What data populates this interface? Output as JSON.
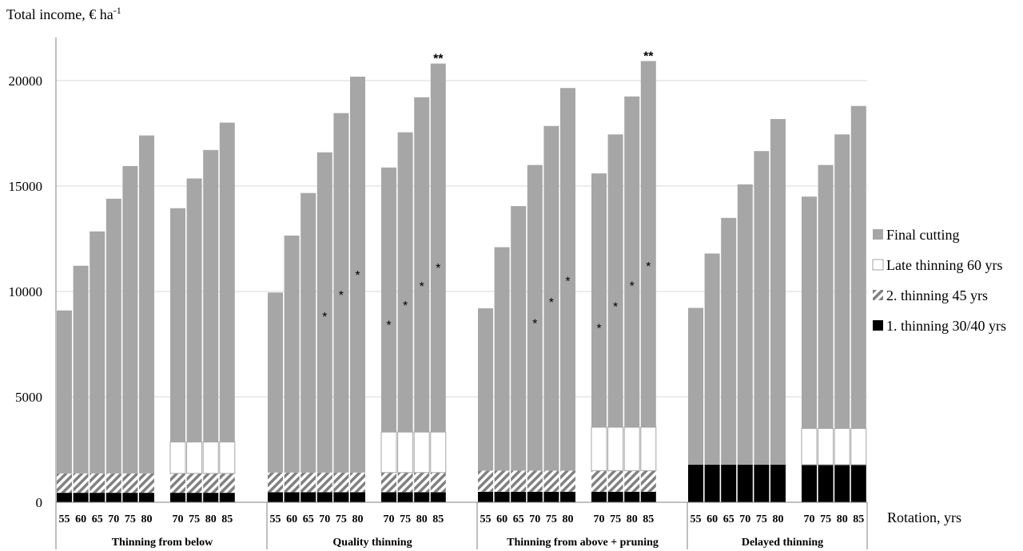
{
  "chart_data": {
    "type": "stacked-bar",
    "ylabel": "Total income, € ha",
    "ylabel_sup": "-1",
    "xlabel": "Rotation,  yrs",
    "ylim": [
      0,
      22000
    ],
    "yticks": [
      0,
      5000,
      10000,
      15000,
      20000
    ],
    "grid": true,
    "legend_position": "right",
    "series_names": [
      "Final cutting",
      "Late thinning 60 yrs",
      "2. thinning 45 yrs",
      "1. thinning 30/40 yrs"
    ],
    "colors": {
      "final": "#a6a6a6",
      "late": "#ffffff",
      "second": "#808080",
      "first": "#000000"
    },
    "groups": [
      {
        "name": "Thinning from below",
        "subgroups": [
          {
            "categories": [
              "55",
              "60",
              "65",
              "70",
              "75",
              "80"
            ],
            "first": [
              450,
              450,
              450,
              450,
              450,
              450
            ],
            "second": [
              920,
              920,
              920,
              920,
              920,
              920
            ],
            "late": [
              0,
              0,
              0,
              0,
              0,
              0
            ],
            "final": [
              7730,
              9850,
              11480,
              13030,
              14580,
              16030
            ],
            "stars": [
              "",
              "",
              "",
              "",
              "",
              ""
            ]
          },
          {
            "categories": [
              "70",
              "75",
              "80",
              "85"
            ],
            "first": [
              450,
              450,
              450,
              450
            ],
            "second": [
              920,
              920,
              920,
              920
            ],
            "late": [
              1490,
              1490,
              1490,
              1490
            ],
            "final": [
              11090,
              12500,
              13850,
              15150
            ],
            "stars": [
              "",
              "",
              "",
              ""
            ]
          }
        ]
      },
      {
        "name": "Quality thinning",
        "subgroups": [
          {
            "categories": [
              "55",
              "60",
              "65",
              "70",
              "75",
              "80"
            ],
            "first": [
              480,
              480,
              480,
              480,
              480,
              480
            ],
            "second": [
              930,
              930,
              930,
              930,
              930,
              930
            ],
            "late": [
              0,
              0,
              0,
              0,
              0,
              0
            ],
            "final": [
              8540,
              11240,
              13260,
              15190,
              17050,
              18780
            ],
            "stars": [
              "",
              "",
              "",
              "*",
              "*",
              "*"
            ]
          },
          {
            "categories": [
              "70",
              "75",
              "80",
              "85"
            ],
            "first": [
              480,
              480,
              480,
              480
            ],
            "second": [
              930,
              930,
              930,
              930
            ],
            "late": [
              1920,
              1920,
              1920,
              1920
            ],
            "final": [
              12550,
              14220,
              15880,
              17480
            ],
            "stars": [
              "*",
              "*",
              "*",
              "*"
            ],
            "top_star": "**"
          }
        ]
      },
      {
        "name": "Thinning from above + pruning",
        "subgroups": [
          {
            "categories": [
              "55",
              "60",
              "65",
              "70",
              "75",
              "80"
            ],
            "first": [
              500,
              500,
              500,
              500,
              500,
              500
            ],
            "second": [
              1000,
              1000,
              1000,
              1000,
              1000,
              1000
            ],
            "late": [
              0,
              0,
              0,
              0,
              0,
              0
            ],
            "final": [
              7700,
              10600,
              12550,
              14500,
              16350,
              18150
            ],
            "stars": [
              "",
              "",
              "",
              "*",
              "*",
              "*"
            ]
          },
          {
            "categories": [
              "70",
              "75",
              "80",
              "85"
            ],
            "first": [
              500,
              500,
              500,
              500
            ],
            "second": [
              1000,
              1000,
              1000,
              1000
            ],
            "late": [
              2060,
              2060,
              2060,
              2060
            ],
            "final": [
              12040,
              13890,
              15690,
              17370
            ],
            "stars": [
              "*",
              "*",
              "*",
              "*"
            ],
            "top_star": "**"
          }
        ]
      },
      {
        "name": "Delayed thinning",
        "subgroups": [
          {
            "categories": [
              "55",
              "60",
              "65",
              "70",
              "75",
              "80"
            ],
            "first": [
              1780,
              1780,
              1780,
              1780,
              1780,
              1780
            ],
            "second": [
              0,
              0,
              0,
              0,
              0,
              0
            ],
            "late": [
              0,
              0,
              0,
              0,
              0,
              0
            ],
            "final": [
              7440,
              10020,
              11710,
              13300,
              14880,
              16400
            ],
            "stars": [
              "",
              "",
              "",
              "",
              "",
              ""
            ]
          },
          {
            "categories": [
              "70",
              "75",
              "80",
              "85"
            ],
            "first": [
              1780,
              1780,
              1780,
              1780
            ],
            "second": [
              0,
              0,
              0,
              0
            ],
            "late": [
              1720,
              1720,
              1720,
              1720
            ],
            "final": [
              11000,
              12500,
              13950,
              15300
            ],
            "stars": [
              "",
              "",
              "",
              ""
            ]
          }
        ]
      }
    ]
  }
}
